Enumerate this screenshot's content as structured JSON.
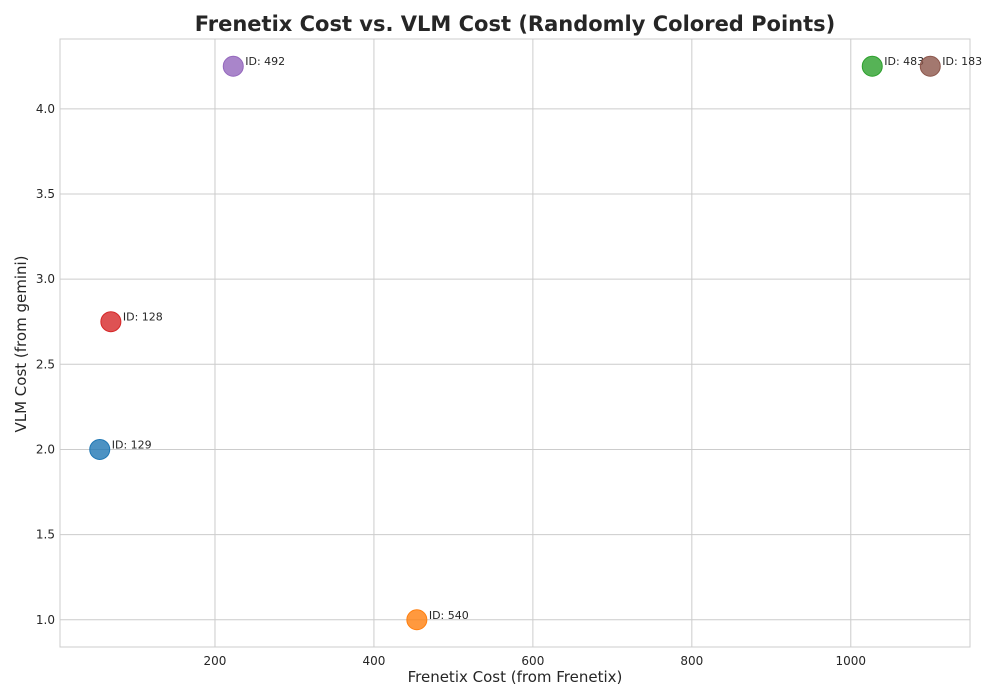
{
  "chart_data": {
    "type": "scatter",
    "title": "Frenetix Cost vs. VLM Cost (Randomly Colored Points)",
    "xlabel": "Frenetix Cost (from Frenetix)",
    "ylabel": "VLM Cost (from gemini)",
    "xlim": [
      5,
      1150
    ],
    "ylim": [
      0.84,
      4.41
    ],
    "xticks": [
      200,
      400,
      600,
      800,
      1000
    ],
    "xtick_labels": [
      "200",
      "400",
      "600",
      "800",
      "1000"
    ],
    "yticks": [
      1.0,
      1.5,
      2.0,
      2.5,
      3.0,
      3.5,
      4.0
    ],
    "ytick_labels": [
      "1.0",
      "1.5",
      "2.0",
      "2.5",
      "3.0",
      "3.5",
      "4.0"
    ],
    "grid": true,
    "points": [
      {
        "label": "ID: 129",
        "x": 55,
        "y": 2.0,
        "color": "#1f77b4"
      },
      {
        "label": "ID: 128",
        "x": 69,
        "y": 2.75,
        "color": "#d62728"
      },
      {
        "label": "ID: 492",
        "x": 223,
        "y": 4.25,
        "color": "#9467bd"
      },
      {
        "label": "ID: 540",
        "x": 454,
        "y": 1.0,
        "color": "#ff7f0e"
      },
      {
        "label": "ID: 483",
        "x": 1027,
        "y": 4.25,
        "color": "#2ca02c"
      },
      {
        "label": "ID: 183",
        "x": 1100,
        "y": 4.25,
        "color": "#8c564b"
      }
    ]
  }
}
